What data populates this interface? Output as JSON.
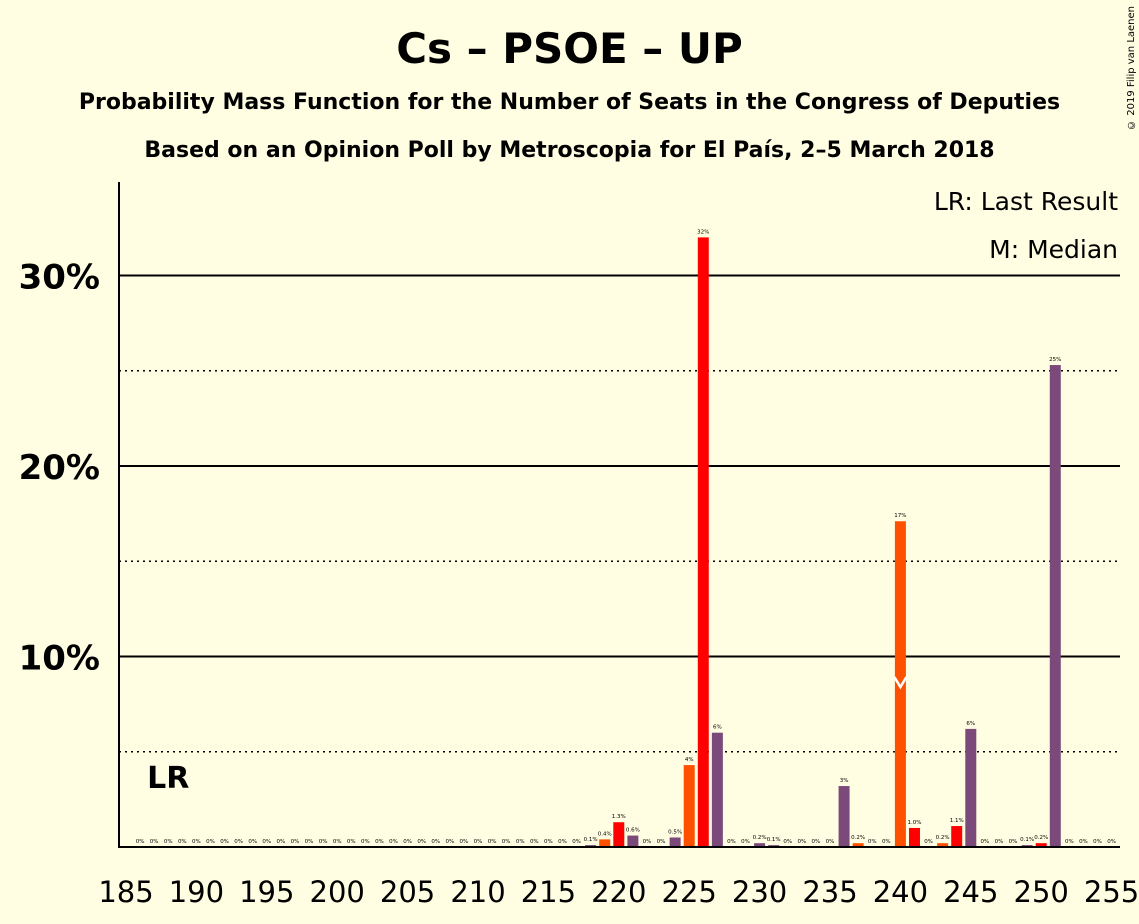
{
  "title": "Cs – PSOE – UP",
  "subtitle": "Probability Mass Function for the Number of Seats in the Congress of Deputies",
  "subtitle2": "Based on an Opinion Poll by Metroscopia for El País, 2–5 March 2018",
  "copyright": "© 2019 Filip van Laenen",
  "legend": {
    "last_result": "LR: Last Result",
    "median": "M: Median"
  },
  "colors": {
    "background": "#FFFEE2",
    "red": "#FF0000",
    "orange": "#FF5000",
    "purple": "#7B4A7A"
  },
  "chart_data": {
    "type": "bar",
    "xlim": [
      185,
      255
    ],
    "ylim": [
      0,
      35
    ],
    "x_ticks": [
      "185",
      "190",
      "195",
      "200",
      "205",
      "210",
      "215",
      "220",
      "225",
      "230",
      "235",
      "240",
      "245",
      "250",
      "255"
    ],
    "y_ticks": [
      "10%",
      "20%",
      "30%"
    ],
    "last_result_seat": 188,
    "last_result_label": "LR",
    "median_seat": 240,
    "median_value": 8.5,
    "bars": [
      {
        "x": 186,
        "v": 0,
        "c": "purple",
        "l": "0%"
      },
      {
        "x": 187,
        "v": 0,
        "c": "purple",
        "l": "0%"
      },
      {
        "x": 188,
        "v": 0,
        "c": "purple",
        "l": "0%"
      },
      {
        "x": 189,
        "v": 0,
        "c": "purple",
        "l": "0%"
      },
      {
        "x": 190,
        "v": 0,
        "c": "purple",
        "l": "0%"
      },
      {
        "x": 191,
        "v": 0,
        "c": "purple",
        "l": "0%"
      },
      {
        "x": 192,
        "v": 0,
        "c": "purple",
        "l": "0%"
      },
      {
        "x": 193,
        "v": 0,
        "c": "purple",
        "l": "0%"
      },
      {
        "x": 194,
        "v": 0,
        "c": "purple",
        "l": "0%"
      },
      {
        "x": 195,
        "v": 0,
        "c": "purple",
        "l": "0%"
      },
      {
        "x": 196,
        "v": 0,
        "c": "purple",
        "l": "0%"
      },
      {
        "x": 197,
        "v": 0,
        "c": "purple",
        "l": "0%"
      },
      {
        "x": 198,
        "v": 0,
        "c": "purple",
        "l": "0%"
      },
      {
        "x": 199,
        "v": 0,
        "c": "purple",
        "l": "0%"
      },
      {
        "x": 200,
        "v": 0,
        "c": "purple",
        "l": "0%"
      },
      {
        "x": 201,
        "v": 0,
        "c": "purple",
        "l": "0%"
      },
      {
        "x": 202,
        "v": 0,
        "c": "purple",
        "l": "0%"
      },
      {
        "x": 203,
        "v": 0,
        "c": "purple",
        "l": "0%"
      },
      {
        "x": 204,
        "v": 0,
        "c": "purple",
        "l": "0%"
      },
      {
        "x": 205,
        "v": 0,
        "c": "purple",
        "l": "0%"
      },
      {
        "x": 206,
        "v": 0,
        "c": "purple",
        "l": "0%"
      },
      {
        "x": 207,
        "v": 0,
        "c": "purple",
        "l": "0%"
      },
      {
        "x": 208,
        "v": 0,
        "c": "purple",
        "l": "0%"
      },
      {
        "x": 209,
        "v": 0,
        "c": "purple",
        "l": "0%"
      },
      {
        "x": 210,
        "v": 0,
        "c": "purple",
        "l": "0%"
      },
      {
        "x": 211,
        "v": 0,
        "c": "purple",
        "l": "0%"
      },
      {
        "x": 212,
        "v": 0,
        "c": "purple",
        "l": "0%"
      },
      {
        "x": 213,
        "v": 0,
        "c": "purple",
        "l": "0%"
      },
      {
        "x": 214,
        "v": 0,
        "c": "purple",
        "l": "0%"
      },
      {
        "x": 215,
        "v": 0,
        "c": "purple",
        "l": "0%"
      },
      {
        "x": 216,
        "v": 0,
        "c": "purple",
        "l": "0%"
      },
      {
        "x": 217,
        "v": 0,
        "c": "purple",
        "l": "0%"
      },
      {
        "x": 218,
        "v": 0.1,
        "c": "purple",
        "l": "0.1%"
      },
      {
        "x": 219,
        "v": 0.4,
        "c": "orange",
        "l": "0.4%"
      },
      {
        "x": 220,
        "v": 1.3,
        "c": "red",
        "l": "1.3%"
      },
      {
        "x": 221,
        "v": 0.6,
        "c": "purple",
        "l": "0.6%"
      },
      {
        "x": 222,
        "v": 0,
        "c": "purple",
        "l": "0%"
      },
      {
        "x": 223,
        "v": 0,
        "c": "purple",
        "l": "0%"
      },
      {
        "x": 224,
        "v": 0.5,
        "c": "purple",
        "l": "0.5%"
      },
      {
        "x": 225,
        "v": 4.3,
        "c": "orange",
        "l": "4%"
      },
      {
        "x": 226,
        "v": 32,
        "c": "red",
        "l": "32%"
      },
      {
        "x": 227,
        "v": 6,
        "c": "purple",
        "l": "6%"
      },
      {
        "x": 228,
        "v": 0,
        "c": "purple",
        "l": "0%"
      },
      {
        "x": 229,
        "v": 0,
        "c": "purple",
        "l": "0%"
      },
      {
        "x": 230,
        "v": 0.2,
        "c": "purple",
        "l": "0.2%"
      },
      {
        "x": 231,
        "v": 0.1,
        "c": "purple",
        "l": "0.1%"
      },
      {
        "x": 232,
        "v": 0,
        "c": "purple",
        "l": "0%"
      },
      {
        "x": 233,
        "v": 0,
        "c": "purple",
        "l": "0%"
      },
      {
        "x": 234,
        "v": 0,
        "c": "purple",
        "l": "0%"
      },
      {
        "x": 235,
        "v": 0,
        "c": "purple",
        "l": "0%"
      },
      {
        "x": 236,
        "v": 3.2,
        "c": "purple",
        "l": "3%"
      },
      {
        "x": 237,
        "v": 0.2,
        "c": "orange",
        "l": "0.2%"
      },
      {
        "x": 238,
        "v": 0,
        "c": "purple",
        "l": "0%"
      },
      {
        "x": 239,
        "v": 0,
        "c": "purple",
        "l": "0%"
      },
      {
        "x": 240,
        "v": 17.1,
        "c": "orange",
        "l": "17%"
      },
      {
        "x": 241,
        "v": 1,
        "c": "red",
        "l": "1.0%"
      },
      {
        "x": 242,
        "v": 0,
        "c": "purple",
        "l": "0%"
      },
      {
        "x": 243,
        "v": 0.2,
        "c": "orange",
        "l": "0.2%"
      },
      {
        "x": 244,
        "v": 1.1,
        "c": "red",
        "l": "1.1%"
      },
      {
        "x": 245,
        "v": 6.2,
        "c": "purple",
        "l": "6%"
      },
      {
        "x": 246,
        "v": 0,
        "c": "purple",
        "l": "0%"
      },
      {
        "x": 247,
        "v": 0,
        "c": "purple",
        "l": "0%"
      },
      {
        "x": 248,
        "v": 0,
        "c": "purple",
        "l": "0%"
      },
      {
        "x": 249,
        "v": 0.1,
        "c": "purple",
        "l": "0.1%"
      },
      {
        "x": 250,
        "v": 0.2,
        "c": "red",
        "l": "0.2%"
      },
      {
        "x": 251,
        "v": 25.3,
        "c": "purple",
        "l": "25%"
      },
      {
        "x": 252,
        "v": 0,
        "c": "purple",
        "l": "0%"
      },
      {
        "x": 253,
        "v": 0,
        "c": "purple",
        "l": "0%"
      },
      {
        "x": 254,
        "v": 0,
        "c": "purple",
        "l": "0%"
      },
      {
        "x": 255,
        "v": 0,
        "c": "purple",
        "l": "0%"
      }
    ]
  }
}
